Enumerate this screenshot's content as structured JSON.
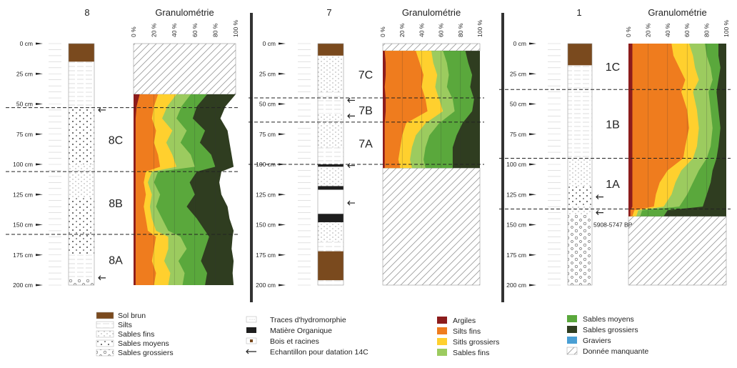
{
  "chart_data": {
    "type": "area",
    "depth_axis": {
      "unit": "cm",
      "range": [
        0,
        200
      ],
      "ticks": [
        0,
        25,
        50,
        75,
        100,
        125,
        150,
        175,
        200
      ],
      "tick_labels": [
        "0 cm",
        "25 cm",
        "50 cm",
        "75 cm",
        "100 cm",
        "125 cm",
        "150 cm",
        "175 cm",
        "200 cm"
      ]
    },
    "percent_axis": {
      "ticks": [
        "0 %",
        "20 %",
        "40 %",
        "60 %",
        "80 %",
        "100 %"
      ]
    },
    "grain_title": "Granulométrie",
    "profiles": [
      {
        "id": "8",
        "missing_range": [
          0,
          42
        ],
        "data_range": [
          42,
          200
        ],
        "units": [
          {
            "label": "8C",
            "top": 53,
            "bottom": 106
          },
          {
            "label": "8B",
            "top": 106,
            "bottom": 158
          },
          {
            "label": "8A",
            "top": 158,
            "bottom": 200
          }
        ],
        "boundaries": [
          53,
          106,
          158
        ],
        "samples": [
          55,
          194
        ],
        "lithology": [
          {
            "type": "sol_brun",
            "top": 0,
            "bottom": 15
          },
          {
            "type": "silts",
            "top": 15,
            "bottom": 40
          },
          {
            "type": "silts",
            "top": 40,
            "bottom": 53
          },
          {
            "type": "sables_moyens",
            "top": 53,
            "bottom": 100
          },
          {
            "type": "sables_fins",
            "top": 100,
            "bottom": 128
          },
          {
            "type": "sables_moyens",
            "top": 128,
            "bottom": 175
          },
          {
            "type": "silts",
            "top": 175,
            "bottom": 195
          },
          {
            "type": "sables_grossiers",
            "top": 195,
            "bottom": 200
          }
        ],
        "grain_size": [
          {
            "depth": 42,
            "cumulative": [
              6,
              24,
              42,
              56,
              72,
              100
            ]
          },
          {
            "depth": 52,
            "cumulative": [
              3,
              20,
              33,
              47,
              62,
              90
            ]
          },
          {
            "depth": 62,
            "cumulative": [
              2,
              18,
              28,
              42,
              58,
              85
            ]
          },
          {
            "depth": 72,
            "cumulative": [
              2,
              22,
              38,
              52,
              70,
              92
            ]
          },
          {
            "depth": 82,
            "cumulative": [
              2,
              20,
              32,
              46,
              65,
              94
            ]
          },
          {
            "depth": 92,
            "cumulative": [
              2,
              24,
              38,
              56,
              76,
              96
            ]
          },
          {
            "depth": 102,
            "cumulative": [
              2,
              26,
              42,
              60,
              80,
              98
            ]
          },
          {
            "depth": 106,
            "cumulative": [
              2,
              12,
              18,
              24,
              62,
              86
            ]
          },
          {
            "depth": 115,
            "cumulative": [
              2,
              10,
              14,
              20,
              55,
              84
            ]
          },
          {
            "depth": 125,
            "cumulative": [
              2,
              12,
              18,
              26,
              60,
              86
            ]
          },
          {
            "depth": 135,
            "cumulative": [
              2,
              10,
              16,
              22,
              52,
              92
            ]
          },
          {
            "depth": 145,
            "cumulative": [
              2,
              12,
              18,
              28,
              62,
              94
            ]
          },
          {
            "depth": 155,
            "cumulative": [
              2,
              14,
              22,
              34,
              70,
              98
            ]
          },
          {
            "depth": 160,
            "cumulative": [
              2,
              22,
              34,
              46,
              74,
              97
            ]
          },
          {
            "depth": 170,
            "cumulative": [
              2,
              20,
              34,
              52,
              70,
              96
            ]
          },
          {
            "depth": 180,
            "cumulative": [
              2,
              18,
              30,
              44,
              66,
              98
            ]
          },
          {
            "depth": 190,
            "cumulative": [
              2,
              22,
              36,
              50,
              72,
              97
            ]
          },
          {
            "depth": 200,
            "cumulative": [
              2,
              20,
              34,
              48,
              70,
              98
            ]
          }
        ]
      },
      {
        "id": "7",
        "missing_range": [
          0,
          6
        ],
        "data_range": [
          6,
          103
        ],
        "missing_below": [
          103,
          200
        ],
        "units": [
          {
            "label": "7C",
            "top": 6,
            "bottom": 45
          },
          {
            "label": "7B",
            "top": 45,
            "bottom": 65
          },
          {
            "label": "7A",
            "top": 65,
            "bottom": 100
          }
        ],
        "boundaries": [
          45,
          65,
          100
        ],
        "samples": [
          47,
          60,
          101,
          132
        ],
        "lithology": [
          {
            "type": "sol_brun",
            "top": 0,
            "bottom": 10
          },
          {
            "type": "sables_fins",
            "top": 10,
            "bottom": 40
          },
          {
            "type": "silts",
            "top": 40,
            "bottom": 58
          },
          {
            "type": "sables_fins",
            "top": 58,
            "bottom": 86
          },
          {
            "type": "silts",
            "top": 86,
            "bottom": 100
          },
          {
            "type": "matiere_organique",
            "top": 100,
            "bottom": 102
          },
          {
            "type": "sables_fins",
            "top": 102,
            "bottom": 118
          },
          {
            "type": "matiere_organique",
            "top": 118,
            "bottom": 121
          },
          {
            "type": "bois_racines",
            "top": 121,
            "bottom": 141
          },
          {
            "type": "matiere_organique",
            "top": 141,
            "bottom": 148
          },
          {
            "type": "sables_fins",
            "top": 148,
            "bottom": 164
          },
          {
            "type": "silts",
            "top": 164,
            "bottom": 172
          },
          {
            "type": "sol_brun",
            "top": 172,
            "bottom": 196
          },
          {
            "type": "silts",
            "top": 196,
            "bottom": 200
          }
        ],
        "grain_size": [
          {
            "depth": 6,
            "cumulative": [
              2,
              34,
              50,
              62,
              85,
              100
            ]
          },
          {
            "depth": 16,
            "cumulative": [
              3,
              38,
              52,
              66,
              88,
              100
            ]
          },
          {
            "depth": 26,
            "cumulative": [
              3,
              42,
              56,
              68,
              92,
              100
            ]
          },
          {
            "depth": 36,
            "cumulative": [
              2,
              40,
              54,
              66,
              90,
              100
            ]
          },
          {
            "depth": 46,
            "cumulative": [
              3,
              44,
              58,
              72,
              94,
              100
            ]
          },
          {
            "depth": 56,
            "cumulative": [
              3,
              46,
              62,
              74,
              92,
              100
            ]
          },
          {
            "depth": 66,
            "cumulative": [
              2,
              24,
              44,
              58,
              82,
              100
            ]
          },
          {
            "depth": 76,
            "cumulative": [
              2,
              20,
              34,
              48,
              76,
              100
            ]
          },
          {
            "depth": 86,
            "cumulative": [
              2,
              18,
              30,
              44,
              72,
              100
            ]
          },
          {
            "depth": 96,
            "cumulative": [
              2,
              16,
              28,
              42,
              72,
              100
            ]
          },
          {
            "depth": 103,
            "cumulative": [
              2,
              18,
              30,
              44,
              72,
              100
            ]
          }
        ]
      },
      {
        "id": "1",
        "missing_range": [
          0,
          0
        ],
        "data_range": [
          0,
          143
        ],
        "missing_below": [
          143,
          200
        ],
        "units": [
          {
            "label": "1C",
            "top": 0,
            "bottom": 38
          },
          {
            "label": "1B",
            "top": 38,
            "bottom": 95
          },
          {
            "label": "1A",
            "top": 95,
            "bottom": 137
          }
        ],
        "boundaries": [
          38,
          95,
          137
        ],
        "samples": [
          127,
          140
        ],
        "date_label": "5908-5747 BP",
        "lithology": [
          {
            "type": "sol_brun",
            "top": 0,
            "bottom": 18
          },
          {
            "type": "silts",
            "top": 18,
            "bottom": 96
          },
          {
            "type": "sables_fins",
            "top": 96,
            "bottom": 118
          },
          {
            "type": "sables_moyens",
            "top": 118,
            "bottom": 135
          },
          {
            "type": "sables_fins",
            "top": 135,
            "bottom": 142
          },
          {
            "type": "sables_grossiers",
            "top": 142,
            "bottom": 200
          }
        ],
        "grain_size": [
          {
            "depth": 0,
            "cumulative": [
              4,
              44,
              62,
              78,
              92,
              100
            ]
          },
          {
            "depth": 10,
            "cumulative": [
              4,
              46,
              66,
              80,
              92,
              100
            ]
          },
          {
            "depth": 20,
            "cumulative": [
              4,
              52,
              68,
              84,
              94,
              100
            ]
          },
          {
            "depth": 30,
            "cumulative": [
              4,
              58,
              72,
              86,
              92,
              100
            ]
          },
          {
            "depth": 40,
            "cumulative": [
              4,
              54,
              66,
              82,
              90,
              100
            ]
          },
          {
            "depth": 55,
            "cumulative": [
              4,
              60,
              70,
              84,
              92,
              100
            ]
          },
          {
            "depth": 70,
            "cumulative": [
              4,
              62,
              72,
              86,
              94,
              100
            ]
          },
          {
            "depth": 85,
            "cumulative": [
              4,
              58,
              70,
              84,
              92,
              100
            ]
          },
          {
            "depth": 95,
            "cumulative": [
              4,
              56,
              66,
              80,
              90,
              100
            ]
          },
          {
            "depth": 105,
            "cumulative": [
              4,
              40,
              54,
              72,
              86,
              100
            ]
          },
          {
            "depth": 115,
            "cumulative": [
              4,
              32,
              48,
              66,
              84,
              100
            ]
          },
          {
            "depth": 125,
            "cumulative": [
              4,
              28,
              44,
              60,
              80,
              100
            ]
          },
          {
            "depth": 135,
            "cumulative": [
              4,
              26,
              36,
              52,
              76,
              100
            ]
          },
          {
            "depth": 138,
            "cumulative": [
              2,
              6,
              10,
              14,
              40,
              100
            ]
          },
          {
            "depth": 143,
            "cumulative": [
              2,
              4,
              8,
              12,
              36,
              100
            ]
          }
        ]
      }
    ]
  },
  "colors": {
    "argiles": "#8c1c1c",
    "silts_fins": "#ef7c1e",
    "silts_grossiers": "#ffd02e",
    "sables_fins": "#9ccb5f",
    "sables_moyens": "#5aa83c",
    "sables_grossiers": "#2f3d20",
    "graviers": "#4a9fd4",
    "sol_brun": "#7a4a1e",
    "matiere_organique": "#1e1e1e",
    "separator": "#333333"
  },
  "legend_lithology": [
    {
      "key": "sol_brun",
      "label": "Sol brun"
    },
    {
      "key": "silts",
      "label": "Silts"
    },
    {
      "key": "sables_fins",
      "label": "Sables fins"
    },
    {
      "key": "sables_moyens",
      "label": "Sables moyens"
    },
    {
      "key": "sables_grossiers",
      "label": "Sables grossiers"
    }
  ],
  "legend_symbols": [
    {
      "key": "hydromorphie",
      "label": "Traces d'hydromorphie"
    },
    {
      "key": "matiere_organique",
      "label": "Matière Organique"
    },
    {
      "key": "bois_racines",
      "label": "Bois et racines"
    },
    {
      "key": "echantillon",
      "label": "Echantillon pour datation 14C"
    }
  ],
  "legend_grain_1": [
    {
      "key": "argiles",
      "label": "Argiles"
    },
    {
      "key": "silts_fins",
      "label": "Silts fins"
    },
    {
      "key": "silts_grossiers",
      "label": "Sitls grossiers"
    },
    {
      "key": "sables_fins",
      "label": "Sables fins"
    }
  ],
  "legend_grain_2": [
    {
      "key": "sables_moyens",
      "label": "Sables moyens"
    },
    {
      "key": "sables_grossiers",
      "label": "Sables grossiers"
    },
    {
      "key": "graviers",
      "label": "Graviers"
    },
    {
      "key": "manquante",
      "label": "Donnée manquante"
    }
  ]
}
